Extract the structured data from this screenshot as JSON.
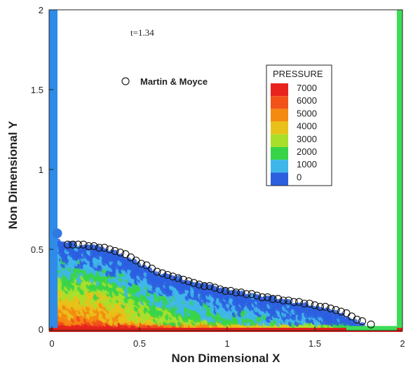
{
  "chart_data": {
    "type": "scatter",
    "title": "",
    "annotation": "t=1.34",
    "xlabel": "Non Dimensional X",
    "ylabel": "Non Dimensional Y",
    "xlim": [
      0,
      2
    ],
    "ylim": [
      0,
      2
    ],
    "x_ticks": [
      "0",
      "0.5",
      "1",
      "1.5",
      "2"
    ],
    "y_ticks": [
      "0",
      "0.5",
      "1",
      "1.5",
      "2"
    ],
    "grid": false,
    "legend_position": "top-center",
    "series": [
      {
        "name": "Martin & Moyce",
        "marker": "open-circle",
        "x": [
          0.09,
          0.12,
          0.15,
          0.18,
          0.21,
          0.24,
          0.27,
          0.3,
          0.33,
          0.36,
          0.39,
          0.42,
          0.45,
          0.48,
          0.51,
          0.54,
          0.57,
          0.6,
          0.63,
          0.66,
          0.69,
          0.72,
          0.75,
          0.78,
          0.81,
          0.84,
          0.87,
          0.9,
          0.93,
          0.96,
          0.99,
          1.02,
          1.05,
          1.08,
          1.11,
          1.14,
          1.17,
          1.2,
          1.23,
          1.26,
          1.29,
          1.32,
          1.35,
          1.38,
          1.41,
          1.44,
          1.47,
          1.5,
          1.53,
          1.56,
          1.59,
          1.62,
          1.65,
          1.68,
          1.71,
          1.74,
          1.77,
          1.82
        ],
        "y": [
          0.53,
          0.53,
          0.53,
          0.53,
          0.52,
          0.52,
          0.51,
          0.51,
          0.5,
          0.49,
          0.48,
          0.47,
          0.45,
          0.43,
          0.41,
          0.4,
          0.38,
          0.36,
          0.35,
          0.34,
          0.33,
          0.32,
          0.31,
          0.3,
          0.29,
          0.28,
          0.27,
          0.27,
          0.26,
          0.25,
          0.24,
          0.24,
          0.23,
          0.23,
          0.22,
          0.22,
          0.21,
          0.2,
          0.2,
          0.19,
          0.19,
          0.18,
          0.18,
          0.17,
          0.17,
          0.16,
          0.16,
          0.15,
          0.14,
          0.14,
          0.13,
          0.12,
          0.11,
          0.1,
          0.08,
          0.06,
          0.05,
          0.03
        ]
      }
    ],
    "pressure_field": {
      "description_units": "PRESSURE",
      "surface": [
        [
          0.0,
          0.62
        ],
        [
          0.05,
          0.54
        ],
        [
          0.1,
          0.53
        ],
        [
          0.2,
          0.52
        ],
        [
          0.3,
          0.5
        ],
        [
          0.4,
          0.46
        ],
        [
          0.5,
          0.4
        ],
        [
          0.6,
          0.35
        ],
        [
          0.7,
          0.32
        ],
        [
          0.8,
          0.29
        ],
        [
          0.9,
          0.27
        ],
        [
          1.0,
          0.24
        ],
        [
          1.1,
          0.22
        ],
        [
          1.2,
          0.2
        ],
        [
          1.3,
          0.18
        ],
        [
          1.4,
          0.16
        ],
        [
          1.5,
          0.14
        ],
        [
          1.6,
          0.11
        ],
        [
          1.7,
          0.06
        ],
        [
          1.78,
          0.02
        ]
      ]
    },
    "colorbar": {
      "title": "PRESSURE",
      "labels": [
        "7000",
        "6000",
        "5000",
        "4000",
        "3000",
        "2000",
        "1000",
        "0"
      ],
      "colors": [
        "#e8231e",
        "#f2531a",
        "#f48a10",
        "#e8c21a",
        "#a8df2a",
        "#37d449",
        "#3fb6ea",
        "#2b5fe0"
      ],
      "range": [
        0,
        7000
      ]
    },
    "walls": {
      "left_color": "#2f8be8",
      "right_color": "#3ddc57",
      "bottom_color": "#e0221a"
    }
  }
}
